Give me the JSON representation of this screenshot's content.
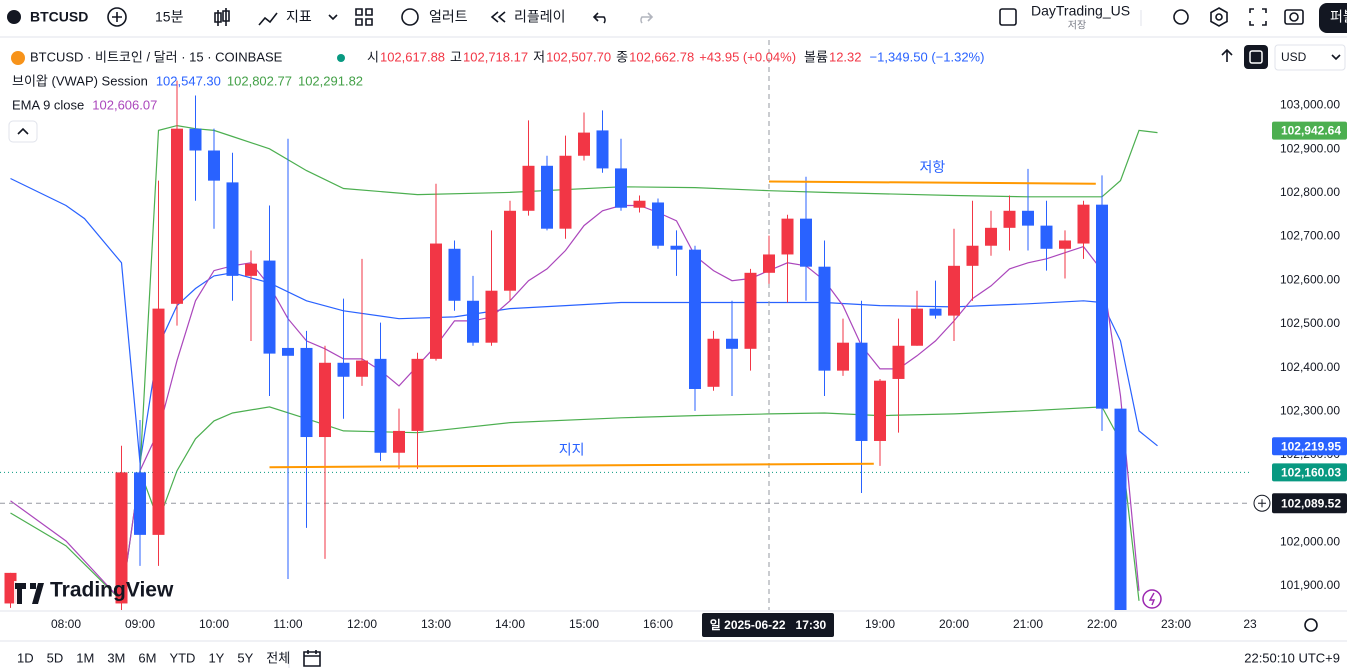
{
  "toolbar": {
    "symbol": "BTCUSD",
    "interval": "15분",
    "indicators": "지표",
    "alert": "얼러트",
    "replay": "리플레이",
    "layout_name": "DayTrading_US",
    "save": "저장",
    "publish": "퍼블"
  },
  "legend": {
    "symbol": "BTCUSD · 비트코인 / 달러 · 15 · COINBASE",
    "ohlc": [
      {
        "label": "시",
        "value": "102,617.88"
      },
      {
        "label": "고",
        "value": "102,718.17"
      },
      {
        "label": "저",
        "value": "102,507.70"
      },
      {
        "label": "종",
        "value": "102,662.78"
      }
    ],
    "change": "+43.95 (+0.04%)",
    "volume_label": "볼륨",
    "volume": "12.32",
    "volume_change": "−1,349.50 (−1.32%)",
    "indicators": [
      {
        "name": "브이왑 (VWAP) Session",
        "values": [
          "102,547.30",
          "102,802.77",
          "102,291.82"
        ],
        "colors": [
          "#2962ff",
          "#43a047",
          "#43a047"
        ]
      },
      {
        "name": "EMA 9 close",
        "values": [
          "102,606.07"
        ],
        "colors": [
          "#ab47bc"
        ]
      }
    ]
  },
  "currency": "USD",
  "watermark": "TradingView",
  "chart_data": {
    "type": "candlestick",
    "x": [
      "07:15",
      "08:45",
      "09:00",
      "09:15",
      "09:30",
      "09:45",
      "10:00",
      "10:15",
      "10:30",
      "10:45",
      "11:00",
      "11:15",
      "11:30",
      "11:45",
      "12:00",
      "12:15",
      "12:30",
      "12:45",
      "13:00",
      "13:15",
      "13:30",
      "13:45",
      "14:00",
      "14:15",
      "14:30",
      "14:45",
      "15:00",
      "15:15",
      "15:30",
      "15:45",
      "16:00",
      "16:15",
      "16:30",
      "16:45",
      "17:00",
      "17:15",
      "17:30",
      "17:45",
      "18:00",
      "18:15",
      "18:30",
      "18:45",
      "19:00",
      "19:15",
      "19:30",
      "19:45",
      "20:00",
      "20:15",
      "20:30",
      "20:45",
      "21:00",
      "21:15",
      "21:30",
      "21:45",
      "22:00",
      "22:15"
    ],
    "open": [
      101860,
      101860,
      102160,
      102017,
      102546,
      102947,
      102897,
      102824,
      102610,
      102645,
      102445,
      102445,
      102241,
      102411,
      102379,
      102420,
      102205,
      102255,
      102420,
      102672,
      102553,
      102457,
      102576,
      102759,
      102862,
      102718,
      102885,
      102943,
      102856,
      102766,
      102778,
      102679,
      102670,
      102356,
      102466,
      102443,
      102617,
      102659,
      102741,
      102631,
      102393,
      102457,
      102232,
      102374,
      102450,
      102535,
      102519,
      102633,
      102679,
      102720,
      102759,
      102725,
      102672,
      102684,
      102773,
      102306
    ],
    "high": [
      101930,
      102221,
      102280,
      102828,
      103057,
      103023,
      102947,
      102892,
      102668,
      102771,
      102924,
      102484,
      102450,
      102558,
      102649,
      102503,
      102306,
      102434,
      102821,
      102691,
      102610,
      102714,
      102782,
      102966,
      102885,
      102931,
      102984,
      102989,
      102924,
      102794,
      102787,
      102714,
      102679,
      102484,
      102553,
      102626,
      102702,
      102750,
      102837,
      102691,
      102512,
      102553,
      102374,
      102512,
      102576,
      102599,
      102718,
      102782,
      102759,
      102794,
      102855,
      102782,
      102714,
      102782,
      102840,
      102306
    ],
    "low": [
      101850,
      101840,
      101946,
      101946,
      102496,
      102782,
      102718,
      102553,
      102461,
      102335,
      101916,
      102033,
      101962,
      102283,
      102358,
      102186,
      102168,
      102168,
      102416,
      102530,
      102450,
      102450,
      102553,
      102748,
      102714,
      102695,
      102874,
      102846,
      102759,
      102755,
      102672,
      102610,
      102301,
      102347,
      102335,
      102393,
      102592,
      102549,
      102553,
      102335,
      102381,
      102113,
      102175,
      102251,
      102450,
      102512,
      102461,
      102553,
      102656,
      102668,
      102668,
      102622,
      102604,
      102649,
      102255,
      101840
    ],
    "close": [
      101930,
      102160,
      102017,
      102535,
      102947,
      102897,
      102828,
      102610,
      102638,
      102432,
      102427,
      102241,
      102411,
      102379,
      102416,
      102205,
      102255,
      102420,
      102684,
      102553,
      102457,
      102576,
      102759,
      102862,
      102718,
      102885,
      102938,
      102856,
      102766,
      102782,
      102679,
      102670,
      102351,
      102466,
      102443,
      102617,
      102659,
      102741,
      102631,
      102393,
      102457,
      102232,
      102370,
      102450,
      102535,
      102519,
      102633,
      102679,
      102720,
      102759,
      102725,
      102672,
      102691,
      102773,
      102306,
      101840
    ],
    "up_color": "#f23645",
    "down_color": "#2962ff",
    "overlays": [
      {
        "name": "VWAP",
        "color": "#2962ff",
        "x": [
          "07:15",
          "08:00",
          "08:15",
          "08:45",
          "09:00",
          "09:15",
          "09:30",
          "09:45",
          "10:00",
          "10:15",
          "10:45",
          "11:15",
          "11:45",
          "12:30",
          "13:15",
          "14:00",
          "14:45",
          "15:30",
          "16:30",
          "17:30",
          "18:15",
          "19:00",
          "20:00",
          "21:00",
          "21:45",
          "22:00",
          "22:15",
          "22:30",
          "22:45"
        ],
        "values": [
          102833,
          102771,
          102741,
          102640,
          102182,
          102450,
          102542,
          102581,
          102610,
          102617,
          102594,
          102553,
          102530,
          102512,
          102516,
          102535,
          102542,
          102549,
          102549,
          102549,
          102549,
          102542,
          102539,
          102546,
          102553,
          102549,
          102461,
          102255,
          102221
        ]
      },
      {
        "name": "Upper Band",
        "color": "#4caf50",
        "x": [
          "09:00",
          "09:15",
          "09:30",
          "09:45",
          "10:00",
          "10:15",
          "10:45",
          "11:15",
          "11:45",
          "12:45",
          "14:00",
          "15:30",
          "16:30",
          "17:30",
          "18:15",
          "20:00",
          "21:00",
          "22:00",
          "22:15",
          "22:30",
          "22:45"
        ],
        "values": [
          102164,
          102943,
          102954,
          102947,
          102943,
          102929,
          102901,
          102851,
          102810,
          102796,
          102801,
          102814,
          102812,
          102805,
          102801,
          102794,
          102791,
          102791,
          102828,
          102943,
          102938
        ]
      },
      {
        "name": "Lower Band",
        "color": "#4caf50",
        "x": [
          "07:15",
          "08:00",
          "08:45",
          "09:00",
          "09:15",
          "09:30",
          "09:45",
          "10:00",
          "10:15",
          "10:45",
          "11:15",
          "11:45",
          "12:45",
          "14:00",
          "15:30",
          "16:30",
          "17:30",
          "18:15",
          "19:00",
          "20:00",
          "21:00",
          "22:00",
          "22:15",
          "22:30"
        ],
        "values": [
          102067,
          101992,
          101866,
          102164,
          102049,
          102164,
          102237,
          102278,
          102296,
          102310,
          102283,
          102255,
          102251,
          102274,
          102285,
          102290,
          102294,
          102296,
          102290,
          102294,
          102301,
          102310,
          102232,
          101866
        ]
      },
      {
        "name": "EMA 9",
        "color": "#ab47bc",
        "x": [
          "07:15",
          "08:00",
          "08:45",
          "09:00",
          "09:15",
          "09:30",
          "09:45",
          "10:00",
          "10:15",
          "10:30",
          "10:45",
          "11:00",
          "11:15",
          "11:30",
          "11:45",
          "12:00",
          "12:15",
          "12:30",
          "12:45",
          "13:00",
          "13:15",
          "13:30",
          "13:45",
          "14:00",
          "14:15",
          "14:30",
          "14:45",
          "15:00",
          "15:15",
          "15:30",
          "15:45",
          "16:00",
          "16:15",
          "16:30",
          "16:45",
          "17:00",
          "17:15",
          "17:30",
          "17:45",
          "18:00",
          "18:15",
          "18:30",
          "18:45",
          "19:00",
          "19:15",
          "19:30",
          "19:45",
          "20:00",
          "20:15",
          "20:30",
          "20:45",
          "21:00",
          "21:15",
          "21:30",
          "21:45",
          "22:00",
          "22:15",
          "22:30"
        ],
        "values": [
          102095,
          102003,
          101866,
          102164,
          102255,
          102416,
          102553,
          102622,
          102633,
          102640,
          102587,
          102512,
          102461,
          102443,
          102420,
          102420,
          102393,
          102358,
          102404,
          102450,
          102507,
          102507,
          102516,
          102553,
          102599,
          102626,
          102668,
          102725,
          102759,
          102771,
          102771,
          102755,
          102736,
          102656,
          102622,
          102599,
          102604,
          102622,
          102640,
          102633,
          102599,
          102542,
          102450,
          102397,
          102397,
          102427,
          102461,
          102507,
          102558,
          102587,
          102626,
          102640,
          102649,
          102663,
          102677,
          102622,
          102335,
          101889
        ]
      }
    ],
    "levels": [
      {
        "label": "지지",
        "color": "#ff9800",
        "x": [
          "10:45",
          "18:55"
        ],
        "values": [
          102172,
          102180
        ]
      },
      {
        "label": "저항",
        "color": "#ff9800",
        "x": [
          "17:30",
          "21:55"
        ],
        "values": [
          102826,
          102821
        ]
      }
    ],
    "price_tags": [
      {
        "value": 102942.64,
        "label": "102,942.64",
        "color": "#4caf50"
      },
      {
        "value": 102219.95,
        "label": "102,219.95",
        "color": "#2962ff"
      }
    ],
    "current_price": {
      "value": 102160.03,
      "label": "102,160.03",
      "color": "#089981"
    },
    "crosshair": {
      "x": "17:30",
      "x_label": "일 2025-06-22   17:30",
      "y": 102089.52,
      "y_label": "102,089.52"
    },
    "ylim": [
      101845,
      103150
    ],
    "yticks": [
      {
        "value": 101900,
        "label": "101,900.00"
      },
      {
        "value": 102000,
        "label": "102,000.00"
      },
      {
        "value": 102100,
        "label": "102,100.00"
      },
      {
        "value": 102200,
        "label": "102,200.00"
      },
      {
        "value": 102300,
        "label": "102,300.00"
      },
      {
        "value": 102400,
        "label": "102,400.00"
      },
      {
        "value": 102500,
        "label": "102,500.00"
      },
      {
        "value": 102600,
        "label": "102,600.00"
      },
      {
        "value": 102700,
        "label": "102,700.00"
      },
      {
        "value": 102800,
        "label": "102,800.00"
      },
      {
        "value": 102900,
        "label": "102,900.00"
      },
      {
        "value": 103000,
        "label": "103,000.00"
      }
    ],
    "xticks": [
      "08:00",
      "09:00",
      "10:00",
      "11:00",
      "12:00",
      "13:00",
      "14:00",
      "15:00",
      "16:00",
      "17:00",
      "18:00",
      "19:00",
      "20:00",
      "21:00",
      "22:00",
      "23:00",
      {
        "value": "24:00",
        "label": "23"
      }
    ],
    "grid": false
  },
  "bottom_bar": {
    "ranges": [
      "1D",
      "5D",
      "1M",
      "3M",
      "6M",
      "YTD",
      "1Y",
      "5Y",
      "전체"
    ],
    "clock": "22:50:10 UTC+9"
  }
}
